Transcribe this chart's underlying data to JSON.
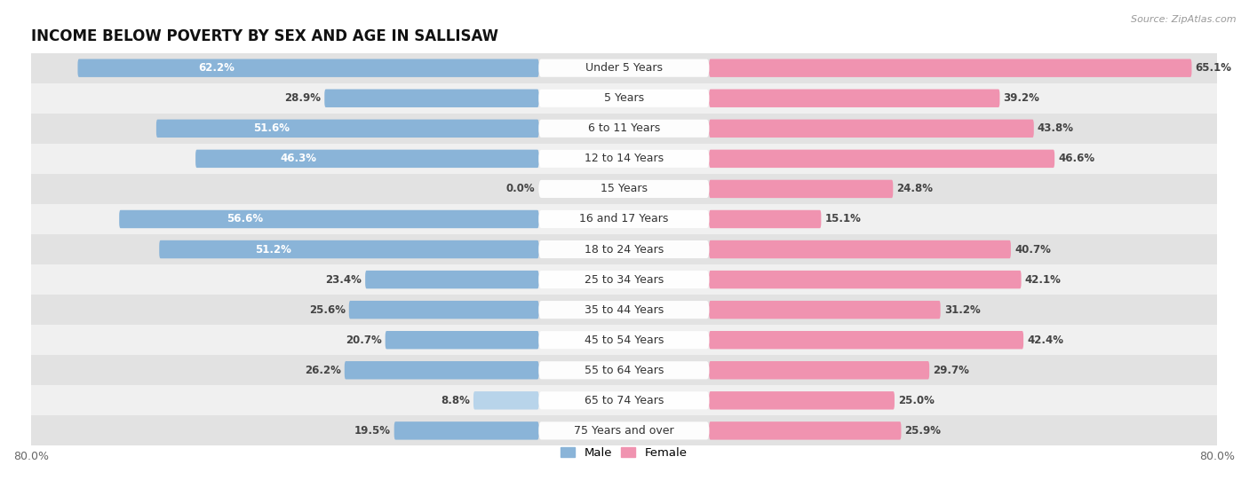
{
  "title": "INCOME BELOW POVERTY BY SEX AND AGE IN SALLISAW",
  "source": "Source: ZipAtlas.com",
  "categories": [
    "Under 5 Years",
    "5 Years",
    "6 to 11 Years",
    "12 to 14 Years",
    "15 Years",
    "16 and 17 Years",
    "18 to 24 Years",
    "25 to 34 Years",
    "35 to 44 Years",
    "45 to 54 Years",
    "55 to 64 Years",
    "65 to 74 Years",
    "75 Years and over"
  ],
  "male": [
    62.2,
    28.9,
    51.6,
    46.3,
    0.0,
    56.6,
    51.2,
    23.4,
    25.6,
    20.7,
    26.2,
    8.8,
    19.5
  ],
  "female": [
    65.1,
    39.2,
    43.8,
    46.6,
    24.8,
    15.1,
    40.7,
    42.1,
    31.2,
    42.4,
    29.7,
    25.0,
    25.9
  ],
  "male_color": "#8ab4d8",
  "female_color": "#f093b0",
  "male_color_light": "#b8d4ea",
  "female_color_light": "#f8c0d0",
  "row_color_dark": "#e2e2e2",
  "row_color_light": "#f0f0f0",
  "bg_color": "#ffffff",
  "xlim": 80.0,
  "bar_height": 0.58,
  "label_fontsize": 8.5,
  "cat_fontsize": 9.0,
  "legend_male": "Male",
  "legend_female": "Female",
  "title_fontsize": 12,
  "source_fontsize": 8
}
